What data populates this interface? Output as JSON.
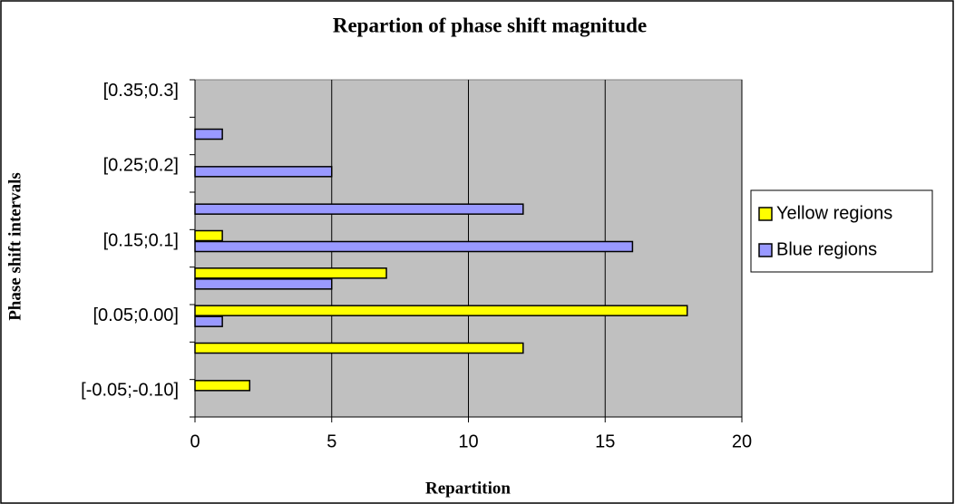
{
  "chart_data": {
    "type": "hbar",
    "title": "Repartion of phase shift magnitude",
    "xlabel": "Repartition",
    "ylabel": "Phase shift intervals",
    "categories": [
      "[-0.05;-0.10]",
      null,
      "[0.05;0.00]",
      null,
      "[0.15;0.1]",
      null,
      "[0.25;0.2]",
      null,
      "[0.35;0.3]"
    ],
    "series": [
      {
        "name": "Yellow regions",
        "color": "#ffff00",
        "values": [
          2,
          12,
          18,
          7,
          1,
          0,
          0,
          0,
          0
        ]
      },
      {
        "name": "Blue regions",
        "color": "#9999ff",
        "values": [
          0,
          0,
          1,
          5,
          16,
          12,
          5,
          1,
          0
        ]
      }
    ],
    "xlim": [
      0,
      20
    ],
    "xticks": [
      0,
      5,
      10,
      15,
      20
    ],
    "grid": true,
    "legend": "right"
  }
}
